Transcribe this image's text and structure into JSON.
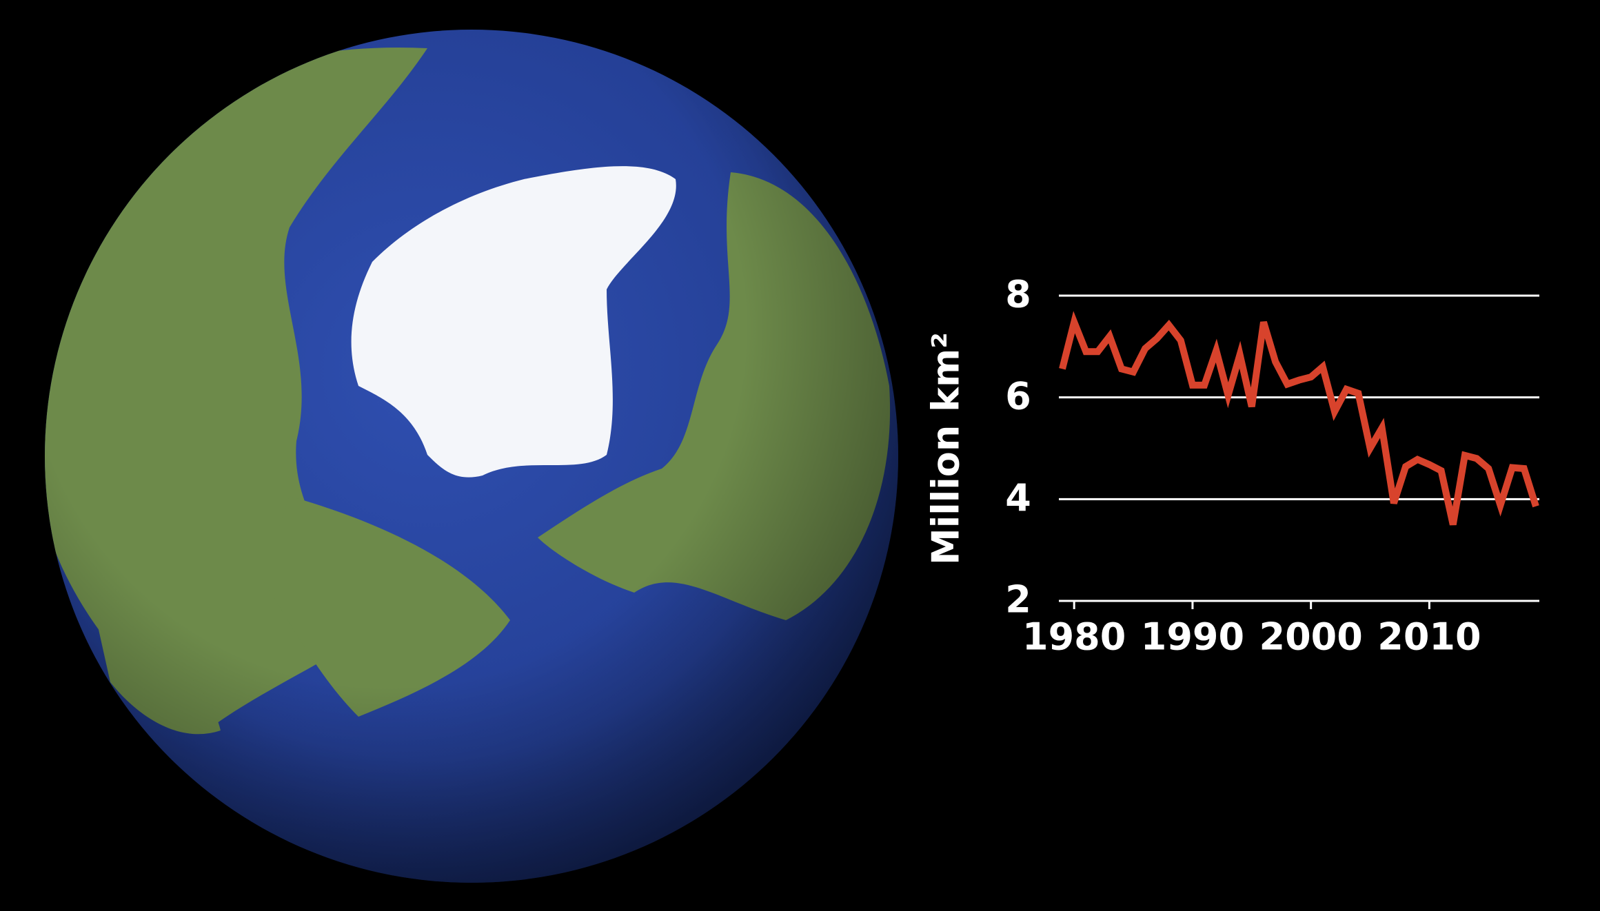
{
  "chart_data": {
    "type": "line",
    "ylabel": "Million km²",
    "x": [
      1979,
      1980,
      1981,
      1982,
      1983,
      1984,
      1985,
      1986,
      1987,
      1988,
      1989,
      1990,
      1991,
      1992,
      1993,
      1994,
      1995,
      1996,
      1997,
      1998,
      1999,
      2000,
      2001,
      2002,
      2003,
      2004,
      2005,
      2006,
      2007,
      2008,
      2009,
      2010,
      2011,
      2012,
      2013,
      2014,
      2015,
      2016,
      2017,
      2018,
      2019
    ],
    "values": [
      6.56,
      7.48,
      6.9,
      6.9,
      7.2,
      6.56,
      6.5,
      6.96,
      7.16,
      7.42,
      7.12,
      6.24,
      6.24,
      6.92,
      6.04,
      6.84,
      5.82,
      7.48,
      6.7,
      6.26,
      6.34,
      6.4,
      6.6,
      5.72,
      6.16,
      6.08,
      5.0,
      5.4,
      3.92,
      4.64,
      4.78,
      4.68,
      4.56,
      3.5,
      4.86,
      4.8,
      4.6,
      3.88,
      4.62,
      4.6,
      3.86
    ],
    "color": "#d8432c",
    "xlim": [
      1979,
      2019
    ],
    "xticks": [
      1980,
      1990,
      2000,
      2010
    ],
    "ylim": [
      2,
      8
    ],
    "yticks": [
      2,
      4,
      6,
      8
    ],
    "grid": true
  }
}
